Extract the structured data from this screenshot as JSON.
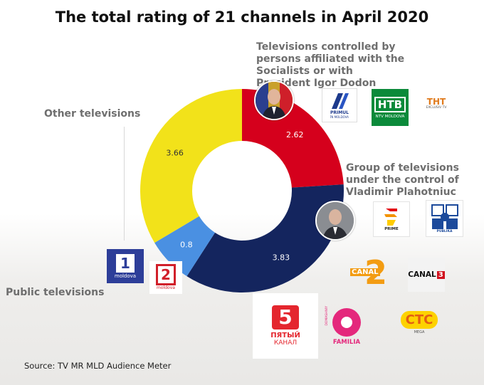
{
  "title": "The total rating of 21 channels in April 2020",
  "source": "Source: TV MR MLD Audience Meter",
  "groups": {
    "socialists": "Televisions controlled by persons affiliated with the Socialists or with President Igor Dodon",
    "plahotniuc": "Group of televisions under the control of Vladimir Plahotniuc",
    "other": "Other televisions",
    "public": "Public televisions"
  },
  "chart_data": {
    "type": "pie",
    "variant": "donut",
    "title": "The total rating of 21 channels in April 2020",
    "categories": [
      "Televisions controlled by persons affiliated with the Socialists or with President Igor Dodon",
      "Group of televisions under the control of Vladimir Plahotniuc",
      "Public televisions",
      "Other televisions"
    ],
    "values": [
      2.62,
      3.83,
      0.8,
      3.66
    ],
    "labels": [
      "2.62",
      "3.83",
      "0.8",
      "3.66"
    ],
    "colors": [
      "#d5001c",
      "#14255e",
      "#4a90e2",
      "#f2e21a"
    ]
  },
  "logos": {
    "primul_name": "PRIMUL",
    "primul_sub": "ÎN MOLDOVA",
    "ntv_mark": "НТВ",
    "ntv_name": "NTV MOLDOVA",
    "tnt_name": "ТНТ",
    "tnt_sub": "EXCLUSIV TV",
    "prime_name": "PRIME",
    "publika_name": "PUBLIKA",
    "canal2_name": "CANAL",
    "canal2_num": "2",
    "canal3_name": "CANAL",
    "canal3_num": "3",
    "moldova1_num": "1",
    "moldova1_name": "moldova",
    "moldova2_num": "2",
    "moldova2_name": "moldova",
    "five_num": "5",
    "five_name": "ПЯТЫЙ",
    "five_sub": "КАНАЛ",
    "familia_top": "DOMASHNIY",
    "familia_name": "FAMILIA",
    "ctc_name": "СТС",
    "ctc_sub": "MEGA"
  }
}
